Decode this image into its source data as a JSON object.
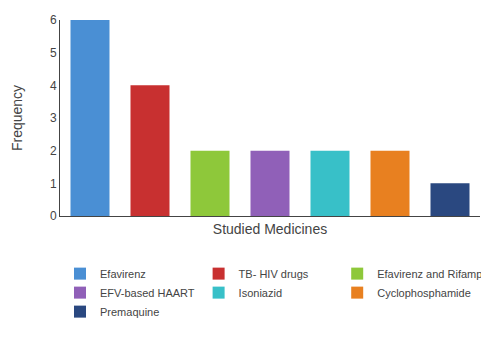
{
  "chart_data": {
    "type": "bar",
    "categories": [
      "Efavirenz",
      "TB- HIV drugs",
      "Efavirenz and Rifampicin",
      "EFV-based HAART",
      "Isoniazid",
      "Cyclophosphamide",
      "Premaquine"
    ],
    "values": [
      6,
      4,
      2,
      2,
      2,
      2,
      1
    ],
    "colors": [
      "#4a8fd4",
      "#c83030",
      "#8ec83a",
      "#9060b8",
      "#38c0c8",
      "#e88020",
      "#2a4880"
    ],
    "xlabel": "Studied Medicines",
    "ylabel": "Frequency",
    "ylim": [
      0,
      6
    ],
    "yticks": [
      0,
      1,
      2,
      3,
      4,
      5,
      6
    ],
    "grid": false,
    "legend": "bottom",
    "tick_labels": "y"
  }
}
